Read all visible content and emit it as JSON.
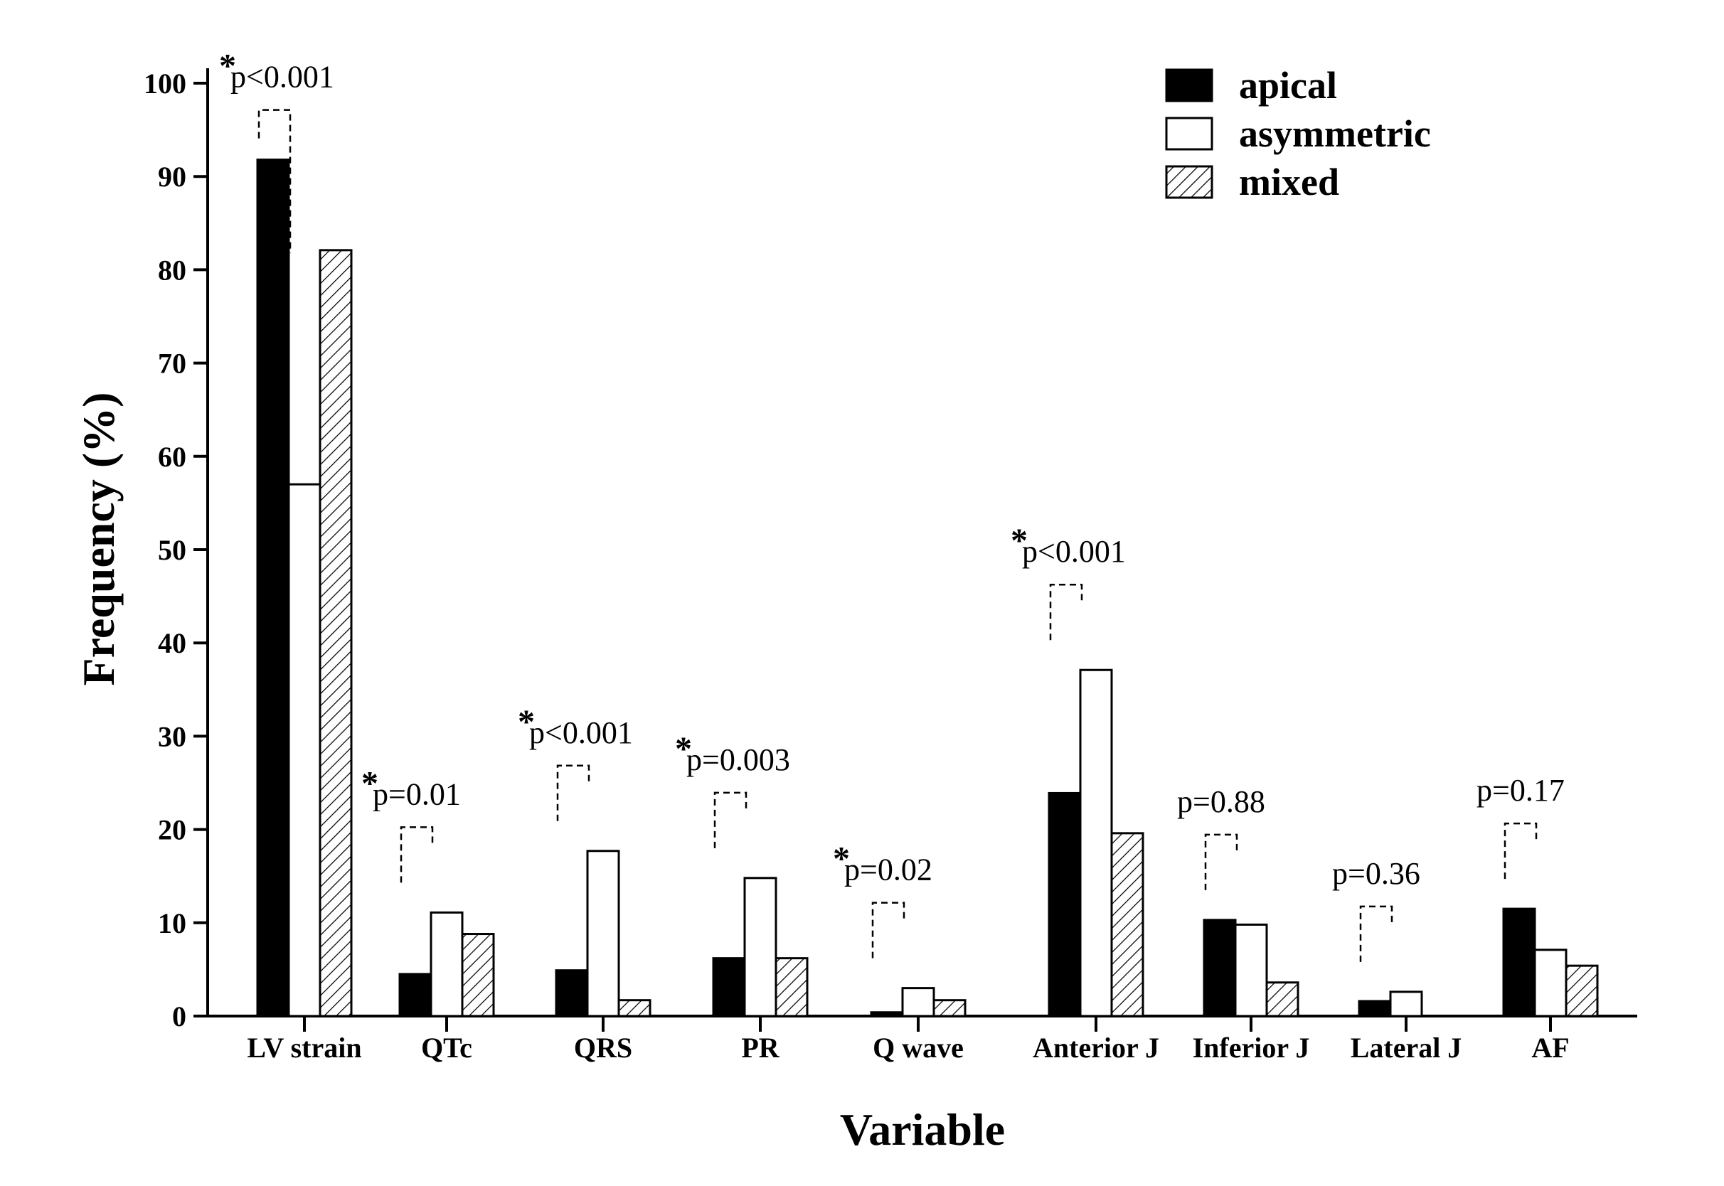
{
  "chart_data": {
    "type": "bar",
    "xlabel": "Variable",
    "ylabel": "Frequency (%)",
    "ylim": [
      0,
      100
    ],
    "yticks": [
      0,
      10,
      20,
      30,
      40,
      50,
      60,
      70,
      80,
      90,
      100
    ],
    "grid": false,
    "legend_position": "top-right",
    "categories": [
      "LV strain",
      "QTc",
      "QRS",
      "PR",
      "Q wave",
      "Anterior J",
      "Inferior J",
      "Lateral J",
      "AF"
    ],
    "series": [
      {
        "name": "apical",
        "fill": "solid-black",
        "values": [
          91.8,
          4.5,
          4.9,
          6.2,
          0.4,
          23.9,
          10.3,
          1.6,
          11.5
        ]
      },
      {
        "name": "asymmetric",
        "fill": "white",
        "values": [
          57.0,
          11.1,
          17.7,
          14.8,
          3.0,
          37.1,
          9.8,
          2.6,
          7.1
        ]
      },
      {
        "name": "mixed",
        "fill": "diagonal-hatch",
        "values": [
          82.1,
          8.8,
          1.7,
          6.2,
          1.7,
          19.6,
          3.6,
          0.0,
          5.4
        ]
      }
    ],
    "annotations": [
      {
        "category": "LV strain",
        "star": "*",
        "text": "p<0.001"
      },
      {
        "category": "QTc",
        "star": "*",
        "text": "p=0.01"
      },
      {
        "category": "QRS",
        "star": "*",
        "text": "p<0.001"
      },
      {
        "category": "PR",
        "star": "*",
        "text": "p=0.003"
      },
      {
        "category": "Q wave",
        "star": "*",
        "text": "p=0.02"
      },
      {
        "category": "Anterior J",
        "star": "*",
        "text": "p<0.001"
      },
      {
        "category": "Inferior J",
        "star": "",
        "text": "p=0.88"
      },
      {
        "category": "Lateral J",
        "star": "",
        "text": "p=0.36"
      },
      {
        "category": "AF",
        "star": "",
        "text": "p=0.17"
      }
    ],
    "colors": {
      "apical": "#000000",
      "asymmetric": "#ffffff",
      "mixed_hatch": "#000000",
      "axis": "#000000"
    }
  }
}
